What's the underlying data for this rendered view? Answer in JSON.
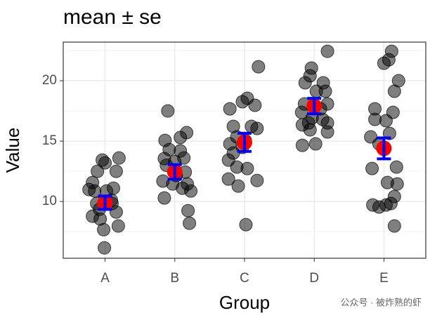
{
  "chart_data": {
    "type": "scatter",
    "title": "mean ± se",
    "xlabel": "Group",
    "ylabel": "Value",
    "xlim": [
      0.4,
      5.6
    ],
    "ylim": [
      5.3,
      23.2
    ],
    "xticks": [
      {
        "value": 1,
        "label": "A"
      },
      {
        "value": 2,
        "label": "B"
      },
      {
        "value": 3,
        "label": "C"
      },
      {
        "value": 4,
        "label": "D"
      },
      {
        "value": 5,
        "label": "E"
      }
    ],
    "yticks": [
      10,
      15,
      20
    ],
    "yminorticks": [
      7.5,
      12.5,
      17.5,
      22.5
    ],
    "grid": true,
    "points": {
      "color": "#000000",
      "x": [
        0.77,
        0.96,
        1.0,
        0.89,
        1.2,
        1.16,
        0.85,
        1.12,
        1.02,
        1.09,
        0.82,
        0.93,
        0.98,
        0.99,
        1.16,
        1.19,
        0.92,
        1.1,
        0.88,
        0.82,
        1.9,
        1.86,
        2.17,
        2.08,
        1.92,
        2.13,
        2.0,
        1.88,
        2.15,
        2.02,
        1.97,
        1.83,
        2.11,
        2.18,
        1.85,
        2.19,
        2.21,
        2.08,
        1.85,
        2.23,
        3.2,
        2.97,
        2.79,
        3.15,
        2.84,
        3.1,
        3.18,
        2.89,
        3.01,
        2.79,
        2.97,
        2.84,
        2.77,
        2.89,
        3.04,
        2.77,
        3.18,
        2.91,
        3.02,
        3.04,
        4.19,
        3.96,
        3.94,
        3.87,
        4.13,
        4.03,
        4.16,
        3.86,
        4.19,
        3.82,
        3.97,
        4.12,
        3.83,
        4.19,
        3.94,
        4.19,
        3.83,
        4.02,
        4.09,
        3.92,
        5.11,
        5.07,
        5.0,
        5.21,
        5.15,
        4.87,
        4.87,
        5.13,
        5.03,
        4.81,
        5.08,
        4.93,
        4.83,
        5.18,
        5.05,
        5.19,
        5.15,
        4.84,
        5.03,
        5.1,
        5.15,
        4.93
      ],
      "y": [
        10.99,
        13.43,
        13.2,
        12.5,
        13.6,
        12.5,
        10.87,
        11.1,
        10.87,
        10.12,
        8.78,
        8.55,
        7.67,
        6.16,
        9.13,
        7.97,
        9.36,
        9.83,
        9.83,
        11.57,
        17.5,
        15.06,
        15.7,
        15.3,
        14.3,
        13.6,
        13.3,
        13.0,
        12.44,
        12.15,
        11.45,
        11.69,
        11.1,
        11.45,
        10.29,
        9.24,
        8.2,
        14.19,
        13.55,
        10.87,
        21.16,
        18.26,
        17.67,
        17.97,
        16.22,
        16.22,
        16.05,
        15.35,
        15.06,
        14.77,
        14.48,
        14.01,
        13.43,
        12.85,
        12.73,
        11.86,
        11.74,
        11.28,
        8.08,
        18.55,
        22.44,
        21.05,
        20.41,
        19.83,
        19.83,
        19.13,
        19.13,
        18.08,
        18.08,
        17.38,
        16.92,
        16.8,
        16.34,
        16.51,
        15.93,
        15.76,
        14.65,
        14.77,
        17.67,
        16.51,
        22.44,
        21.74,
        21.45,
        20.0,
        19.13,
        17.67,
        16.8,
        17.38,
        16.69,
        15.35,
        15.64,
        14.77,
        12.73,
        12.85,
        11.57,
        11.45,
        10.41,
        9.71,
        9.71,
        9.83,
        7.97,
        9.54
      ]
    },
    "summary": {
      "x": [
        1,
        2,
        3,
        4,
        5
      ],
      "mean": [
        9.9,
        12.45,
        14.9,
        17.9,
        14.4
      ],
      "se": [
        0.55,
        0.6,
        0.75,
        0.64,
        0.87
      ],
      "color": "#ff0000",
      "error_color": "#0000ff"
    }
  },
  "watermark": "公众号 · 被炸熟的虾"
}
